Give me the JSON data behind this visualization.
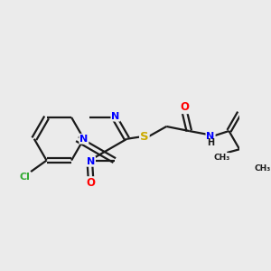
{
  "background_color": "#ebebeb",
  "bond_color": "#1a1a1a",
  "atom_colors": {
    "N": "#0000ff",
    "O": "#ff0000",
    "S": "#ccaa00",
    "Cl": "#33aa33",
    "C": "#1a1a1a",
    "H": "#1a1a1a"
  },
  "figsize": [
    3.0,
    3.0
  ],
  "dpi": 100
}
